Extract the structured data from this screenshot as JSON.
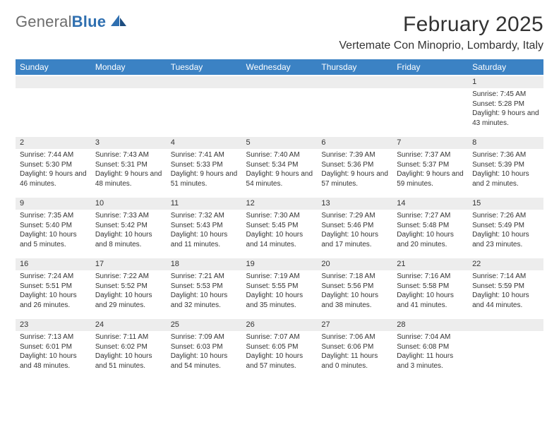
{
  "brand": {
    "name_a": "General",
    "name_b": "Blue"
  },
  "title": "February 2025",
  "location": "Vertemate Con Minoprio, Lombardy, Italy",
  "colors": {
    "header_bg": "#3b82c4",
    "header_text": "#ffffff",
    "daynum_bg": "#ededed",
    "text": "#333333",
    "logo_gray": "#6d6d6d",
    "logo_blue": "#2f6fb0"
  },
  "columns": [
    "Sunday",
    "Monday",
    "Tuesday",
    "Wednesday",
    "Thursday",
    "Friday",
    "Saturday"
  ],
  "weeks": [
    [
      {
        "n": "",
        "lines": []
      },
      {
        "n": "",
        "lines": []
      },
      {
        "n": "",
        "lines": []
      },
      {
        "n": "",
        "lines": []
      },
      {
        "n": "",
        "lines": []
      },
      {
        "n": "",
        "lines": []
      },
      {
        "n": "1",
        "lines": [
          "Sunrise: 7:45 AM",
          "Sunset: 5:28 PM",
          "Daylight: 9 hours and 43 minutes."
        ]
      }
    ],
    [
      {
        "n": "2",
        "lines": [
          "Sunrise: 7:44 AM",
          "Sunset: 5:30 PM",
          "Daylight: 9 hours and 46 minutes."
        ]
      },
      {
        "n": "3",
        "lines": [
          "Sunrise: 7:43 AM",
          "Sunset: 5:31 PM",
          "Daylight: 9 hours and 48 minutes."
        ]
      },
      {
        "n": "4",
        "lines": [
          "Sunrise: 7:41 AM",
          "Sunset: 5:33 PM",
          "Daylight: 9 hours and 51 minutes."
        ]
      },
      {
        "n": "5",
        "lines": [
          "Sunrise: 7:40 AM",
          "Sunset: 5:34 PM",
          "Daylight: 9 hours and 54 minutes."
        ]
      },
      {
        "n": "6",
        "lines": [
          "Sunrise: 7:39 AM",
          "Sunset: 5:36 PM",
          "Daylight: 9 hours and 57 minutes."
        ]
      },
      {
        "n": "7",
        "lines": [
          "Sunrise: 7:37 AM",
          "Sunset: 5:37 PM",
          "Daylight: 9 hours and 59 minutes."
        ]
      },
      {
        "n": "8",
        "lines": [
          "Sunrise: 7:36 AM",
          "Sunset: 5:39 PM",
          "Daylight: 10 hours and 2 minutes."
        ]
      }
    ],
    [
      {
        "n": "9",
        "lines": [
          "Sunrise: 7:35 AM",
          "Sunset: 5:40 PM",
          "Daylight: 10 hours and 5 minutes."
        ]
      },
      {
        "n": "10",
        "lines": [
          "Sunrise: 7:33 AM",
          "Sunset: 5:42 PM",
          "Daylight: 10 hours and 8 minutes."
        ]
      },
      {
        "n": "11",
        "lines": [
          "Sunrise: 7:32 AM",
          "Sunset: 5:43 PM",
          "Daylight: 10 hours and 11 minutes."
        ]
      },
      {
        "n": "12",
        "lines": [
          "Sunrise: 7:30 AM",
          "Sunset: 5:45 PM",
          "Daylight: 10 hours and 14 minutes."
        ]
      },
      {
        "n": "13",
        "lines": [
          "Sunrise: 7:29 AM",
          "Sunset: 5:46 PM",
          "Daylight: 10 hours and 17 minutes."
        ]
      },
      {
        "n": "14",
        "lines": [
          "Sunrise: 7:27 AM",
          "Sunset: 5:48 PM",
          "Daylight: 10 hours and 20 minutes."
        ]
      },
      {
        "n": "15",
        "lines": [
          "Sunrise: 7:26 AM",
          "Sunset: 5:49 PM",
          "Daylight: 10 hours and 23 minutes."
        ]
      }
    ],
    [
      {
        "n": "16",
        "lines": [
          "Sunrise: 7:24 AM",
          "Sunset: 5:51 PM",
          "Daylight: 10 hours and 26 minutes."
        ]
      },
      {
        "n": "17",
        "lines": [
          "Sunrise: 7:22 AM",
          "Sunset: 5:52 PM",
          "Daylight: 10 hours and 29 minutes."
        ]
      },
      {
        "n": "18",
        "lines": [
          "Sunrise: 7:21 AM",
          "Sunset: 5:53 PM",
          "Daylight: 10 hours and 32 minutes."
        ]
      },
      {
        "n": "19",
        "lines": [
          "Sunrise: 7:19 AM",
          "Sunset: 5:55 PM",
          "Daylight: 10 hours and 35 minutes."
        ]
      },
      {
        "n": "20",
        "lines": [
          "Sunrise: 7:18 AM",
          "Sunset: 5:56 PM",
          "Daylight: 10 hours and 38 minutes."
        ]
      },
      {
        "n": "21",
        "lines": [
          "Sunrise: 7:16 AM",
          "Sunset: 5:58 PM",
          "Daylight: 10 hours and 41 minutes."
        ]
      },
      {
        "n": "22",
        "lines": [
          "Sunrise: 7:14 AM",
          "Sunset: 5:59 PM",
          "Daylight: 10 hours and 44 minutes."
        ]
      }
    ],
    [
      {
        "n": "23",
        "lines": [
          "Sunrise: 7:13 AM",
          "Sunset: 6:01 PM",
          "Daylight: 10 hours and 48 minutes."
        ]
      },
      {
        "n": "24",
        "lines": [
          "Sunrise: 7:11 AM",
          "Sunset: 6:02 PM",
          "Daylight: 10 hours and 51 minutes."
        ]
      },
      {
        "n": "25",
        "lines": [
          "Sunrise: 7:09 AM",
          "Sunset: 6:03 PM",
          "Daylight: 10 hours and 54 minutes."
        ]
      },
      {
        "n": "26",
        "lines": [
          "Sunrise: 7:07 AM",
          "Sunset: 6:05 PM",
          "Daylight: 10 hours and 57 minutes."
        ]
      },
      {
        "n": "27",
        "lines": [
          "Sunrise: 7:06 AM",
          "Sunset: 6:06 PM",
          "Daylight: 11 hours and 0 minutes."
        ]
      },
      {
        "n": "28",
        "lines": [
          "Sunrise: 7:04 AM",
          "Sunset: 6:08 PM",
          "Daylight: 11 hours and 3 minutes."
        ]
      },
      {
        "n": "",
        "lines": []
      }
    ]
  ]
}
